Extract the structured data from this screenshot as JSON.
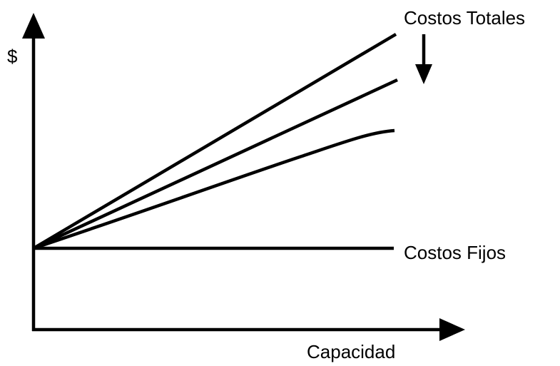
{
  "axes": {
    "y_label": "$",
    "x_label": "Capacidad"
  },
  "labels": {
    "total_costs": "Costos Totales",
    "fixed_costs": "Costos Fijos"
  }
}
